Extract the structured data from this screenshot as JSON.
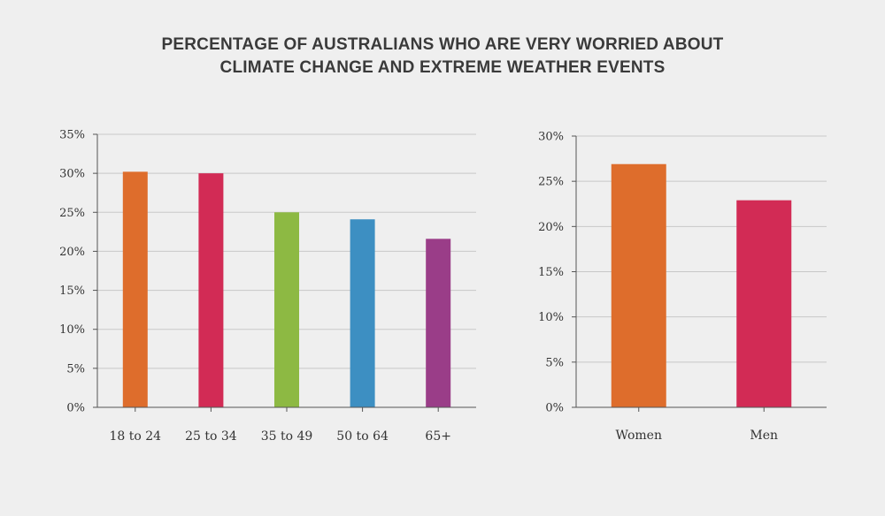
{
  "title_lines": [
    "PERCENTAGE OF AUSTRALIANS WHO ARE VERY WORRIED ABOUT",
    "CLIMATE CHANGE AND EXTREME WEATHER EVENTS"
  ],
  "chart_data": [
    {
      "type": "bar",
      "title": "",
      "xlabel": "",
      "ylabel": "",
      "categories": [
        "18 to 24",
        "25 to 34",
        "35 to 49",
        "50 to 64",
        "65+"
      ],
      "values": [
        30.2,
        30.0,
        25.0,
        24.1,
        21.6
      ],
      "colors": [
        "#de6d2c",
        "#d22b55",
        "#8db943",
        "#3d8fc2",
        "#9a3d88"
      ],
      "ylim": [
        0,
        35
      ],
      "yticks": [
        0,
        5,
        10,
        15,
        20,
        25,
        30,
        35
      ],
      "ytick_labels": [
        "0%",
        "5%",
        "10%",
        "15%",
        "20%",
        "25%",
        "30%",
        "35%"
      ],
      "grid": true,
      "legend": "none"
    },
    {
      "type": "bar",
      "title": "",
      "xlabel": "",
      "ylabel": "",
      "categories": [
        "Women",
        "Men"
      ],
      "values": [
        26.9,
        22.9
      ],
      "colors": [
        "#de6d2c",
        "#d22b55"
      ],
      "ylim": [
        0,
        30
      ],
      "yticks": [
        0,
        5,
        10,
        15,
        20,
        25,
        30
      ],
      "ytick_labels": [
        "0%",
        "5%",
        "10%",
        "15%",
        "20%",
        "25%",
        "30%"
      ],
      "grid": true,
      "legend": "none"
    }
  ],
  "colors": {
    "grid": "#c8c8c8",
    "axis": "#555555",
    "text": "#333333"
  }
}
